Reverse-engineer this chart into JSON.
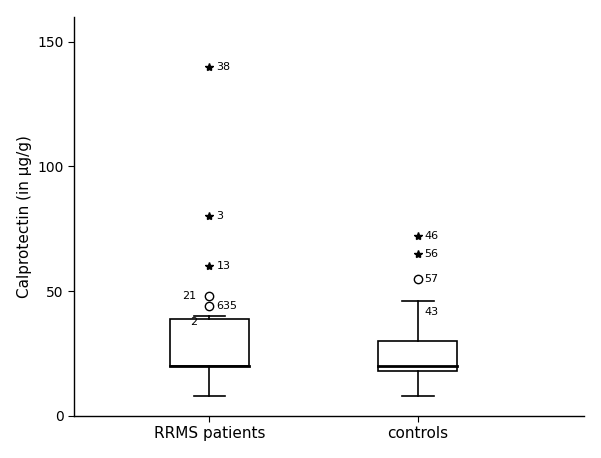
{
  "categories": [
    "RRMS patients",
    "controls"
  ],
  "ylabel": "Calprotectin (in µg/g)",
  "ylim": [
    0,
    160
  ],
  "yticks": [
    0,
    50,
    100,
    150
  ],
  "background_color": "#ffffff",
  "group1": {
    "label": "RRMS patients",
    "x": 1,
    "q1": 20,
    "median": 20,
    "q3": 39,
    "whisker_low": 8,
    "whisker_high": 40,
    "outliers_circle": [
      {
        "y": 48,
        "label": "21",
        "label_side": "left"
      },
      {
        "y": 44,
        "label": "635",
        "label_side": "right"
      }
    ],
    "outliers_star": [
      {
        "y": 60,
        "label": "13",
        "label_side": "right"
      },
      {
        "y": 80,
        "label": "3",
        "label_side": "right"
      },
      {
        "y": 140,
        "label": "38",
        "label_side": "right"
      }
    ],
    "median_label": {
      "y": 39,
      "label": "2",
      "label_side": "left"
    }
  },
  "group2": {
    "label": "controls",
    "x": 2,
    "q1": 18,
    "median": 20,
    "q3": 30,
    "whisker_low": 8,
    "whisker_high": 46,
    "outliers_circle": [
      {
        "y": 55,
        "label": "57",
        "label_side": "right"
      }
    ],
    "outliers_star": [
      {
        "y": 65,
        "label": "56",
        "label_side": "right"
      },
      {
        "y": 72,
        "label": "46",
        "label_side": "right"
      }
    ],
    "whisker_high_label": {
      "y": 46,
      "label": "43",
      "label_side": "right"
    }
  }
}
